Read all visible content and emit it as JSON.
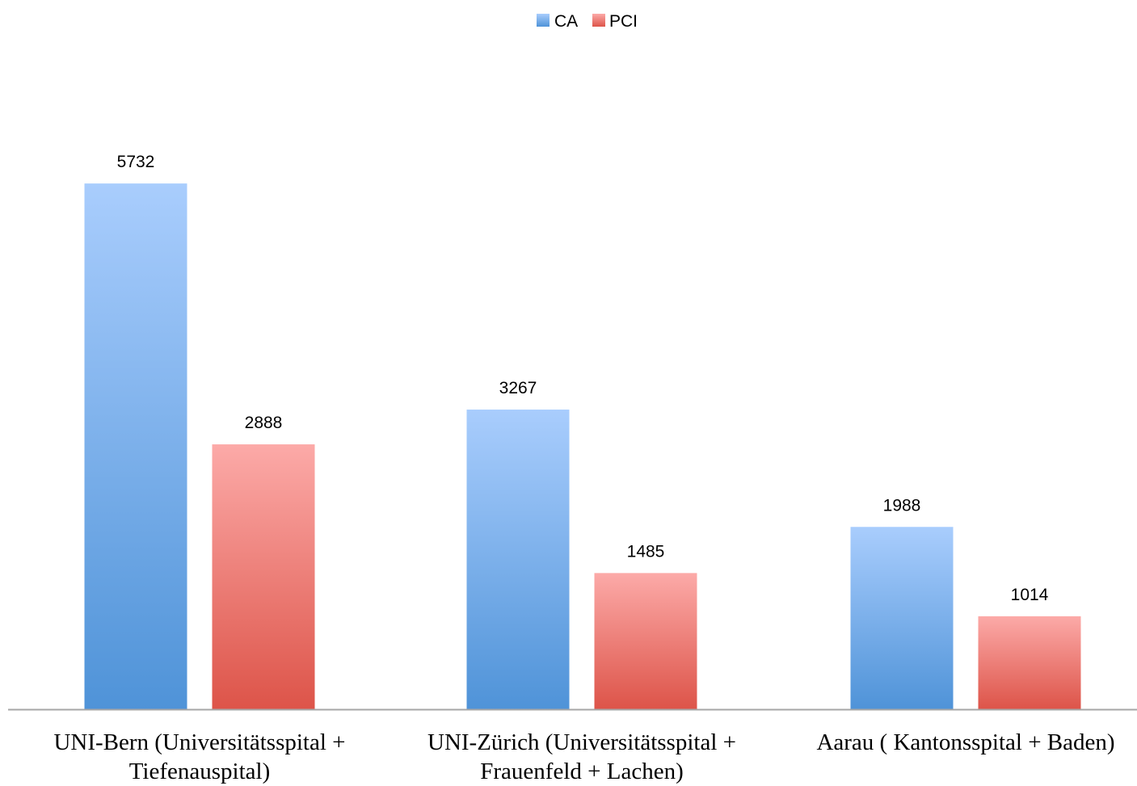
{
  "chart_data": {
    "type": "bar",
    "title": "",
    "xlabel": "",
    "ylabel": "",
    "ylim": [
      0,
      6200
    ],
    "grid": false,
    "legend_position": "top-center",
    "categories": [
      [
        "UNI-Bern (Universitätsspital +",
        "Tiefenauspital)"
      ],
      [
        "UNI-Zürich (Universitätsspital +",
        "Frauenfeld + Lachen)"
      ],
      [
        "Aarau ( Kantonsspital + Baden)"
      ]
    ],
    "series": [
      {
        "name": "CA",
        "values": [
          5732,
          3267,
          1988
        ],
        "color_top": "#a9cdfd",
        "color_bottom": "#4f93d8"
      },
      {
        "name": "PCI",
        "values": [
          2888,
          1485,
          1014
        ],
        "color_top": "#fcaaa8",
        "color_bottom": "#dd5449"
      }
    ],
    "data_labels": true,
    "axis_color": "#a6a6a6"
  }
}
